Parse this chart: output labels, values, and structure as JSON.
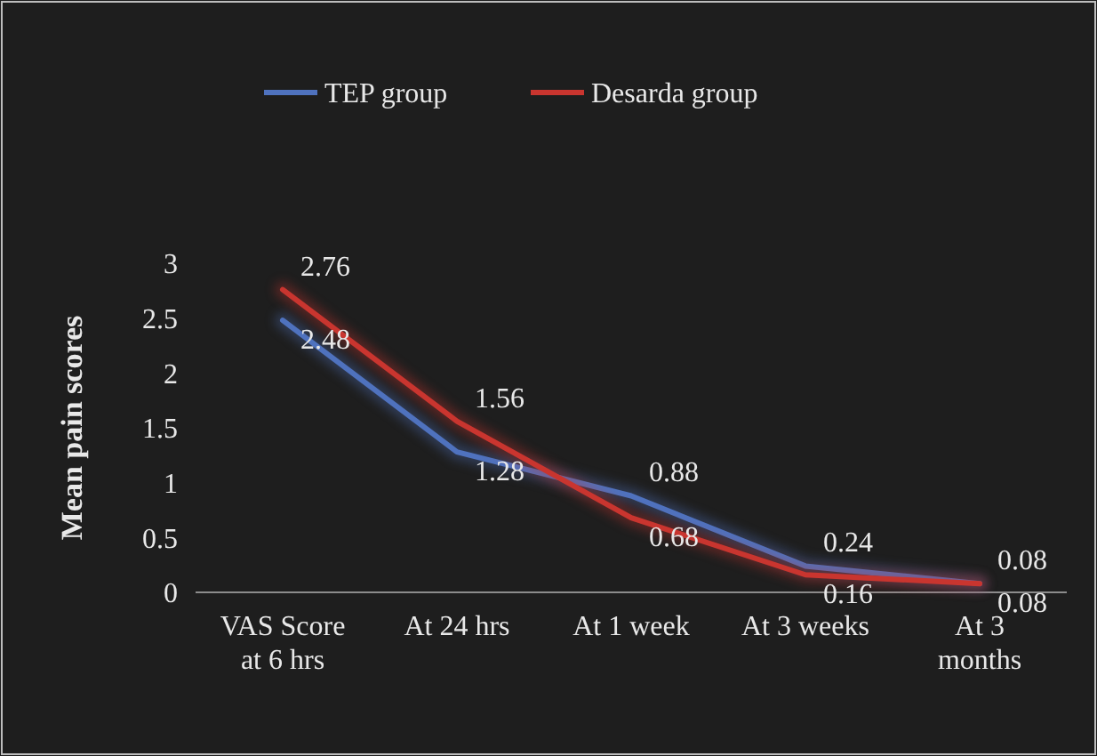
{
  "chart_data": {
    "type": "line",
    "ylabel": "Mean pain scores",
    "categories": [
      "VAS Score at 6 hrs",
      "At 24 hrs",
      "At 1 week",
      "At 3 weeks",
      "At 3 months"
    ],
    "series": [
      {
        "name": "TEP group",
        "color": "#4f72be",
        "values": [
          2.48,
          1.28,
          0.88,
          0.24,
          0.08
        ]
      },
      {
        "name": "Desarda group",
        "color": "#c9352f",
        "values": [
          2.76,
          1.56,
          0.68,
          0.16,
          0.08
        ]
      }
    ],
    "ylim": [
      0,
      3
    ],
    "yticks": [
      0,
      0.5,
      1,
      1.5,
      2,
      2.5,
      3
    ],
    "grid": false,
    "legend": "top",
    "data_labels": true,
    "marker": "none",
    "line_style": "solid"
  }
}
